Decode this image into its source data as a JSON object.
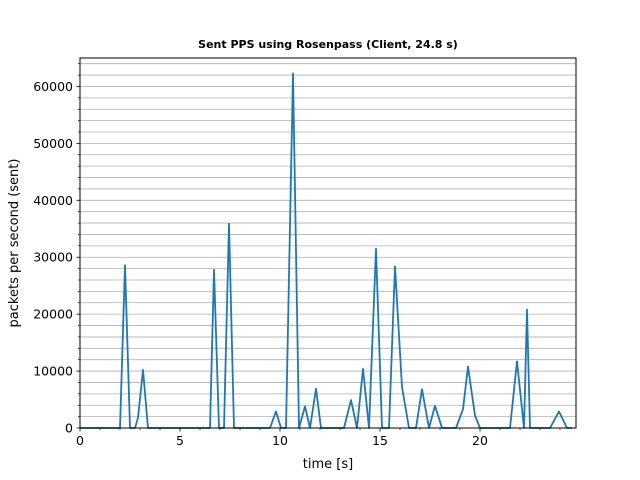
{
  "chart_data": {
    "type": "line",
    "title": "Sent PPS using Rosenpass (Client, 24.8 s)",
    "xlabel": "time [s]",
    "ylabel": "packets per second (sent)",
    "xlim": [
      0,
      24.8
    ],
    "ylim": [
      0,
      65000
    ],
    "x_ticks": [
      0,
      5,
      10,
      15,
      20
    ],
    "y_ticks": [
      0,
      10000,
      20000,
      30000,
      40000,
      50000,
      60000
    ],
    "y_minor_step": 2000,
    "grid": "horizontal minor",
    "line_color": "#1f77b4",
    "series": [
      {
        "x": [
          0,
          0.3,
          0.6,
          0.9,
          1.2,
          1.5,
          1.8,
          2.0,
          2.25,
          2.5,
          2.75,
          2.9,
          3.15,
          3.4,
          3.7,
          4.0,
          4.5,
          5.0,
          5.5,
          6.0,
          6.5,
          6.7,
          6.95,
          7.2,
          7.45,
          7.7,
          8.0,
          8.5,
          9.0,
          9.5,
          9.8,
          10.05,
          10.3,
          10.65,
          10.95,
          11.25,
          11.5,
          11.8,
          12.05,
          12.4,
          12.8,
          13.2,
          13.55,
          13.85,
          14.15,
          14.45,
          14.8,
          15.1,
          15.45,
          15.75,
          16.1,
          16.45,
          16.8,
          17.1,
          17.45,
          17.75,
          18.1,
          18.45,
          18.8,
          19.15,
          19.4,
          19.75,
          20.0,
          20.4,
          20.8,
          21.2,
          21.5,
          21.85,
          22.2,
          22.35,
          22.5,
          22.8,
          23.1,
          23.5,
          23.95,
          24.35,
          24.6
        ],
        "y": [
          0,
          0,
          0,
          0,
          0,
          0,
          0,
          0,
          28600,
          0,
          0,
          1800,
          10200,
          0,
          0,
          0,
          0,
          0,
          0,
          0,
          0,
          27800,
          0,
          0,
          35900,
          0,
          0,
          0,
          0,
          0,
          2900,
          0,
          0,
          62300,
          0,
          3800,
          0,
          6900,
          0,
          0,
          0,
          0,
          4900,
          0,
          10400,
          0,
          31500,
          0,
          0,
          28400,
          7200,
          0,
          0,
          6800,
          0,
          3900,
          0,
          0,
          0,
          3300,
          10800,
          2200,
          0,
          0,
          0,
          0,
          0,
          11700,
          0,
          20800,
          0,
          0,
          0,
          0,
          2900,
          0,
          0
        ]
      }
    ]
  }
}
